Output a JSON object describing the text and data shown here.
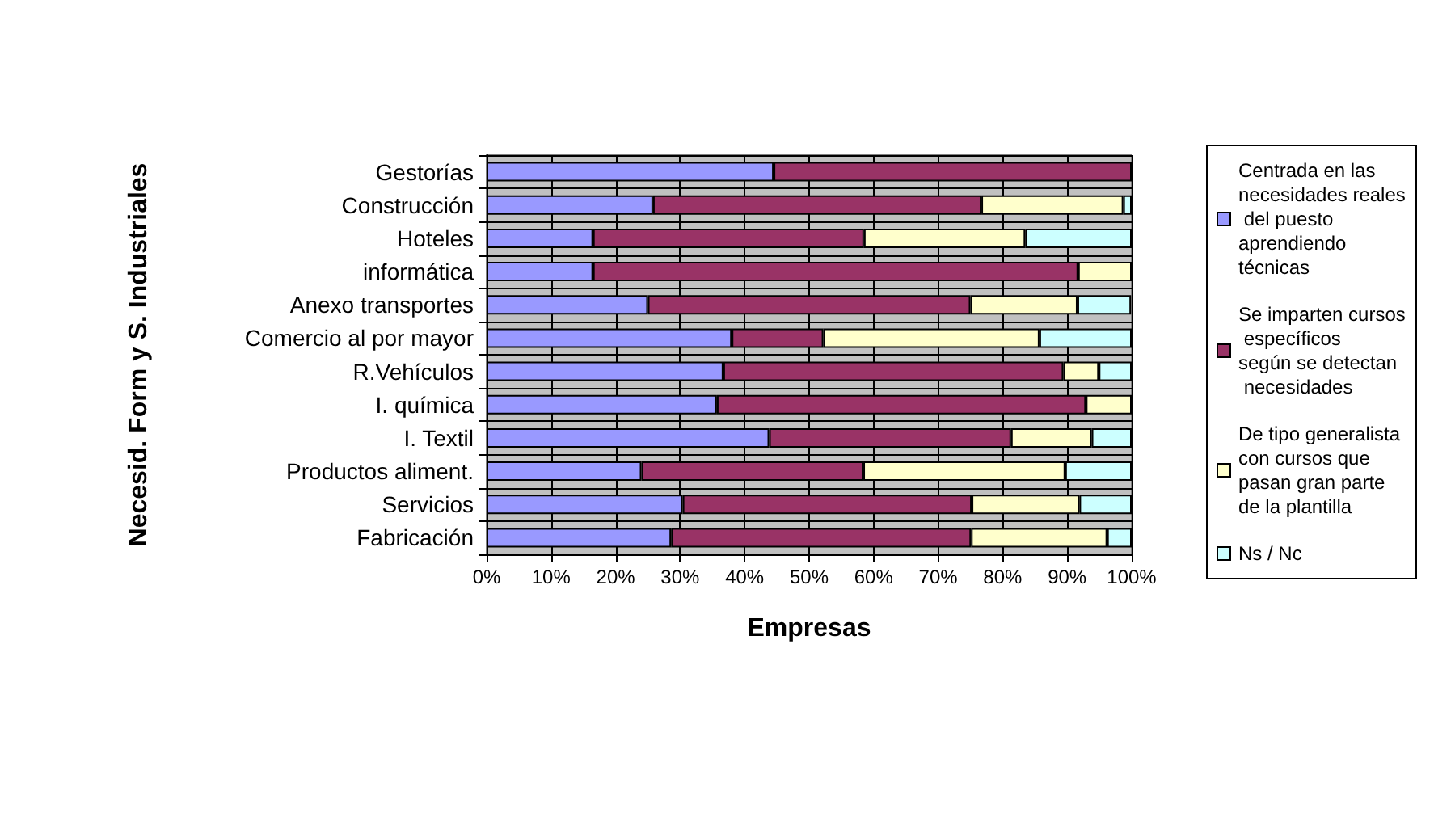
{
  "chart_data": {
    "type": "bar",
    "orientation": "horizontal",
    "stacked": true,
    "ylabel": "Necesid. Form y S. Industriales",
    "xlabel": "Empresas",
    "categories": [
      "Gestorías",
      "Construcción",
      "Hoteles",
      "informática",
      "Anexo transportes",
      "Comercio al por mayor",
      "R.Vehículos",
      "I. química",
      "I. Textil",
      "Productos aliment.",
      "Servicios",
      "Fabricación"
    ],
    "series": [
      {
        "name": "Centrada en las necesidades reales del puesto aprendiendo técnicas",
        "color": "#9999ff",
        "values": [
          44.5,
          25.8,
          16.5,
          16.5,
          25,
          38,
          36.7,
          35.7,
          43.8,
          24,
          30.4,
          28.6
        ]
      },
      {
        "name": "Se imparten cursos específicos según se detectan necesidades",
        "color": "#993366",
        "values": [
          55.5,
          50.9,
          42,
          75.2,
          50,
          14.2,
          52.7,
          57.2,
          37.5,
          34.4,
          44.8,
          46.5
        ]
      },
      {
        "name": "De tipo generalista con cursos que pasan gran parte de la plantilla",
        "color": "#ffffcc",
        "values": [
          0,
          22,
          25,
          8.3,
          16.6,
          33.5,
          5.5,
          7.1,
          12.5,
          31.3,
          16.7,
          21.1
        ]
      },
      {
        "name": "Ns / Nc",
        "color": "#ccffff",
        "values": [
          0,
          1.3,
          16.5,
          0,
          8.3,
          14.3,
          5.1,
          0,
          6.2,
          10.3,
          8.1,
          3.8
        ]
      }
    ],
    "xlim": [
      0,
      100
    ],
    "xticks": [
      {
        "value": 0,
        "label": "0%"
      },
      {
        "value": 10,
        "label": "10%"
      },
      {
        "value": 20,
        "label": "20%"
      },
      {
        "value": 30,
        "label": "30%"
      },
      {
        "value": 40,
        "label": "40%"
      },
      {
        "value": 50,
        "label": "50%"
      },
      {
        "value": 60,
        "label": "60%"
      },
      {
        "value": 70,
        "label": "70%"
      },
      {
        "value": 80,
        "label": "80%"
      },
      {
        "value": 90,
        "label": "90%"
      },
      {
        "value": 100,
        "label": "100%"
      }
    ],
    "grid": true,
    "legend": "right"
  }
}
